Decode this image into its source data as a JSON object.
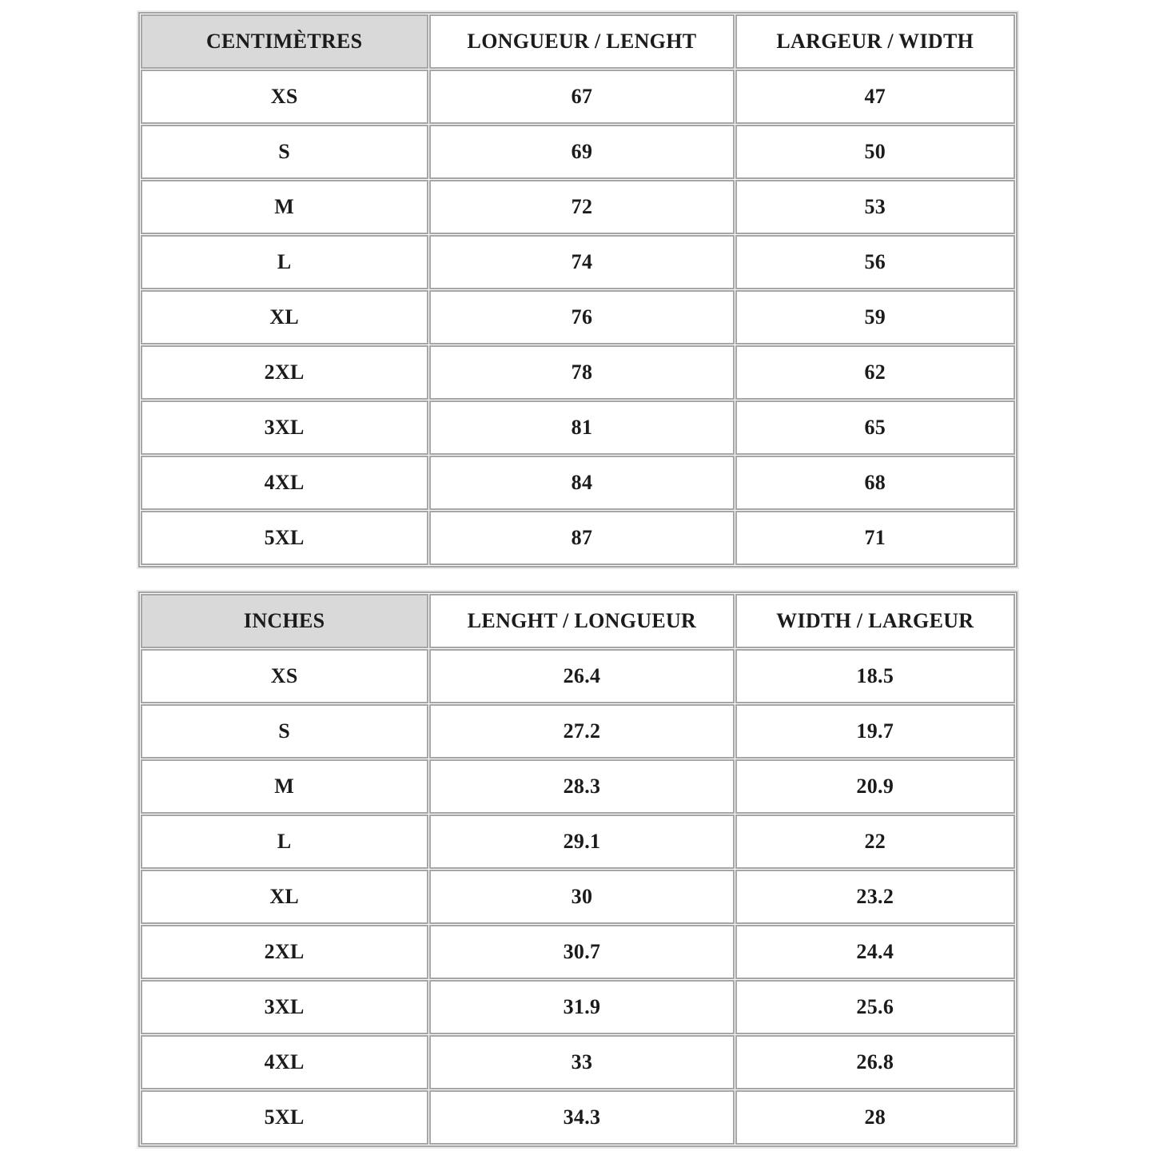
{
  "page": {
    "background": "#ffffff"
  },
  "colors": {
    "border": "#a6a6a6",
    "header_bg": "#d9d9d9",
    "cell_bg": "#ffffff",
    "text": "#1b1b1b"
  },
  "tables": [
    {
      "unit_label": "CENTIMÈTRES",
      "columns": [
        "LONGUEUR / LENGHT",
        "LARGEUR / WIDTH"
      ],
      "rows": [
        [
          "XS",
          "67",
          "47"
        ],
        [
          "S",
          "69",
          "50"
        ],
        [
          "M",
          "72",
          "53"
        ],
        [
          "L",
          "74",
          "56"
        ],
        [
          "XL",
          "76",
          "59"
        ],
        [
          "2XL",
          "78",
          "62"
        ],
        [
          "3XL",
          "81",
          "65"
        ],
        [
          "4XL",
          "84",
          "68"
        ],
        [
          "5XL",
          "87",
          "71"
        ]
      ]
    },
    {
      "unit_label": "INCHES",
      "columns": [
        "LENGHT / LONGUEUR",
        "WIDTH / LARGEUR"
      ],
      "rows": [
        [
          "XS",
          "26.4",
          "18.5"
        ],
        [
          "S",
          "27.2",
          "19.7"
        ],
        [
          "M",
          "28.3",
          "20.9"
        ],
        [
          "L",
          "29.1",
          "22"
        ],
        [
          "XL",
          "30",
          "23.2"
        ],
        [
          "2XL",
          "30.7",
          "24.4"
        ],
        [
          "3XL",
          "31.9",
          "25.6"
        ],
        [
          "4XL",
          "33",
          "26.8"
        ],
        [
          "5XL",
          "34.3",
          "28"
        ]
      ]
    }
  ]
}
